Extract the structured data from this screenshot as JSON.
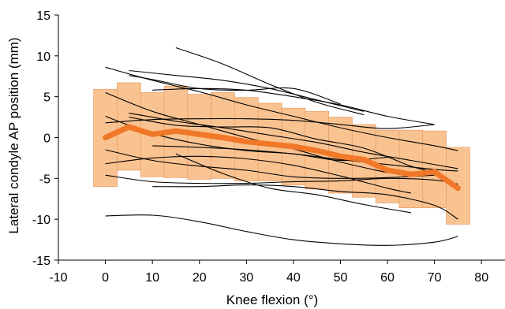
{
  "chart_data": {
    "type": "line",
    "title": "",
    "xlabel": "Knee flexion (°)",
    "ylabel": "Lateral condyle AP position (mm)",
    "xlim": [
      -10,
      85
    ],
    "ylim": [
      -15,
      15
    ],
    "xticks": [
      -10,
      0,
      10,
      20,
      30,
      40,
      50,
      60,
      70,
      80
    ],
    "yticks": [
      -15,
      -10,
      -5,
      0,
      5,
      10,
      15
    ],
    "grid": false,
    "colors": {
      "mean": "#f07828",
      "band": "#f9c391",
      "band_edge": "#eaa26a",
      "subject": "#000000"
    },
    "mean": {
      "x": [
        0,
        5,
        10,
        15,
        20,
        25,
        30,
        35,
        40,
        45,
        50,
        55,
        60,
        65,
        70,
        75
      ],
      "y": [
        0,
        1.3,
        0.4,
        0.8,
        0.4,
        0.0,
        -0.5,
        -0.8,
        -1.1,
        -1.6,
        -2.3,
        -2.7,
        -4.0,
        -4.5,
        -4.2,
        -6.2
      ]
    },
    "band": {
      "x": [
        0,
        5,
        10,
        15,
        20,
        25,
        30,
        35,
        40,
        45,
        50,
        55,
        60,
        65,
        70,
        75
      ],
      "upper": [
        5.9,
        6.7,
        5.5,
        6.3,
        5.3,
        5.5,
        4.9,
        4.2,
        3.6,
        3.2,
        2.5,
        1.6,
        0.9,
        0.9,
        0.8,
        -1.2
      ],
      "lower": [
        -6.0,
        -4.0,
        -4.8,
        -4.9,
        -5.1,
        -5.0,
        -5.3,
        -5.3,
        -5.8,
        -6.3,
        -6.8,
        -7.3,
        -8.0,
        -8.6,
        -8.6,
        -10.6
      ]
    },
    "series": [
      {
        "x": [
          15,
          25,
          35,
          45,
          55
        ],
        "y": [
          11.0,
          9.0,
          6.5,
          4.3,
          2.8
        ]
      },
      {
        "x": [
          0,
          10,
          20,
          30,
          40,
          50,
          60,
          70,
          75
        ],
        "y": [
          8.6,
          7.0,
          5.6,
          4.0,
          2.6,
          1.2,
          0.0,
          -1.0,
          -1.6
        ]
      },
      {
        "x": [
          5,
          15,
          25,
          35,
          45,
          55
        ],
        "y": [
          8.2,
          7.6,
          7.0,
          6.0,
          4.6,
          3.2
        ]
      },
      {
        "x": [
          5,
          10,
          20,
          30,
          40,
          50
        ],
        "y": [
          7.6,
          7.1,
          6.0,
          5.8,
          6.0,
          4.1
        ]
      },
      {
        "x": [
          10,
          20,
          30,
          40,
          50,
          60,
          70
        ],
        "y": [
          5.8,
          6.0,
          5.8,
          5.0,
          4.0,
          2.6,
          1.6
        ]
      },
      {
        "x": [
          0,
          10,
          20,
          30,
          40,
          50,
          60
        ],
        "y": [
          5.5,
          3.2,
          1.6,
          0.0,
          -1.4,
          -3.0,
          -4.3
        ]
      },
      {
        "x": [
          0,
          10,
          20,
          30,
          40,
          50,
          60,
          70
        ],
        "y": [
          1.8,
          2.2,
          2.3,
          2.3,
          2.1,
          1.6,
          1.1,
          1.6
        ]
      },
      {
        "x": [
          5,
          15,
          25,
          35,
          45,
          55,
          65,
          75
        ],
        "y": [
          3.0,
          2.0,
          1.2,
          0.3,
          -0.6,
          -1.8,
          -2.8,
          -3.8
        ]
      },
      {
        "x": [
          5,
          15,
          25,
          35,
          45,
          55,
          65,
          70
        ],
        "y": [
          2.5,
          1.5,
          1.3,
          1.2,
          -0.2,
          -1.3,
          -3.5,
          -4.2
        ]
      },
      {
        "x": [
          0,
          10,
          20,
          30,
          40,
          50,
          60
        ],
        "y": [
          2.6,
          0.5,
          -0.8,
          -1.6,
          -2.0,
          -2.8,
          -2.4
        ]
      },
      {
        "x": [
          10,
          20,
          30,
          40,
          50,
          60,
          70,
          75
        ],
        "y": [
          -1.0,
          -1.2,
          -1.5,
          -2.0,
          -2.7,
          -3.3,
          -3.9,
          -4.1
        ]
      },
      {
        "x": [
          0,
          10,
          20,
          30,
          40,
          50,
          60,
          70
        ],
        "y": [
          -1.5,
          -2.8,
          -3.5,
          -4.0,
          -4.8,
          -5.0,
          -4.9,
          -4.6
        ]
      },
      {
        "x": [
          0,
          10,
          20,
          30,
          40,
          50,
          60,
          65
        ],
        "y": [
          -3.2,
          -2.5,
          -2.3,
          -2.6,
          -3.4,
          -4.7,
          -6.2,
          -6.8
        ]
      },
      {
        "x": [
          15,
          25,
          35,
          45,
          55,
          65
        ],
        "y": [
          -2.0,
          -4.4,
          -6.2,
          -7.0,
          -8.2,
          -9.2
        ]
      },
      {
        "x": [
          0,
          10,
          20,
          30,
          40,
          50,
          60,
          70,
          75
        ],
        "y": [
          -4.6,
          -5.4,
          -5.6,
          -5.6,
          -5.4,
          -5.3,
          -5.0,
          -5.2,
          -5.7
        ]
      },
      {
        "x": [
          10,
          20,
          30,
          40,
          50,
          60,
          70,
          75
        ],
        "y": [
          -6.0,
          -6.0,
          -5.8,
          -6.0,
          -6.6,
          -7.0,
          -8.3,
          -10.0
        ]
      },
      {
        "x": [
          0,
          10,
          20,
          30,
          40,
          50,
          60,
          70,
          75
        ],
        "y": [
          -9.6,
          -9.5,
          -10.3,
          -11.5,
          -12.5,
          -13.0,
          -13.2,
          -12.8,
          -12.1
        ]
      }
    ]
  }
}
